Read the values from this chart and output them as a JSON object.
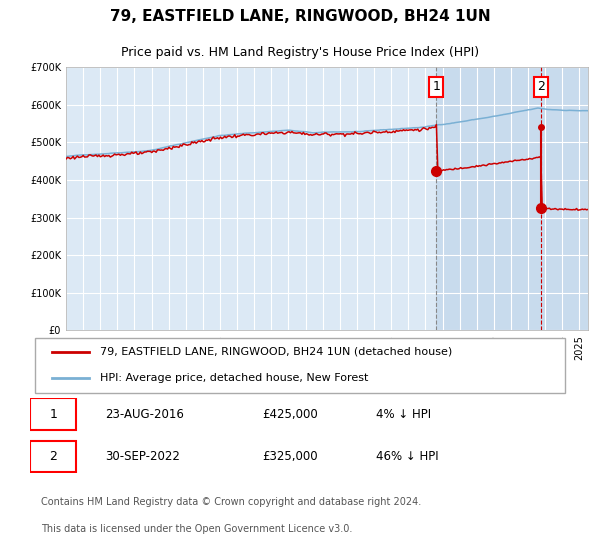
{
  "title": "79, EASTFIELD LANE, RINGWOOD, BH24 1UN",
  "subtitle": "Price paid vs. HM Land Registry's House Price Index (HPI)",
  "ylim": [
    0,
    700000
  ],
  "yticks": [
    0,
    100000,
    200000,
    300000,
    400000,
    500000,
    600000,
    700000
  ],
  "ytick_labels": [
    "£0",
    "£100K",
    "£200K",
    "£300K",
    "£400K",
    "£500K",
    "£600K",
    "£700K"
  ],
  "xlim": [
    1995,
    2025.5
  ],
  "background_color": "#ffffff",
  "plot_bg_color": "#dce9f5",
  "grid_color": "#ffffff",
  "hpi_color": "#7ab0d4",
  "property_color": "#cc0000",
  "sale1_date": 2016.643,
  "sale1_price": 425000,
  "sale2_date": 2022.748,
  "sale2_price": 325000,
  "legend_property": "79, EASTFIELD LANE, RINGWOOD, BH24 1UN (detached house)",
  "legend_hpi": "HPI: Average price, detached house, New Forest",
  "footnote_line1": "Contains HM Land Registry data © Crown copyright and database right 2024.",
  "footnote_line2": "This data is licensed under the Open Government Licence v3.0.",
  "title_fontsize": 11,
  "subtitle_fontsize": 9,
  "tick_fontsize": 7,
  "legend_fontsize": 8,
  "footnote_fontsize": 7,
  "table_rows": [
    {
      "num": "1",
      "date": "23-AUG-2016",
      "price": "£425,000",
      "pct": "4% ↓ HPI"
    },
    {
      "num": "2",
      "date": "30-SEP-2022",
      "price": "£325,000",
      "pct": "46% ↓ HPI"
    }
  ]
}
